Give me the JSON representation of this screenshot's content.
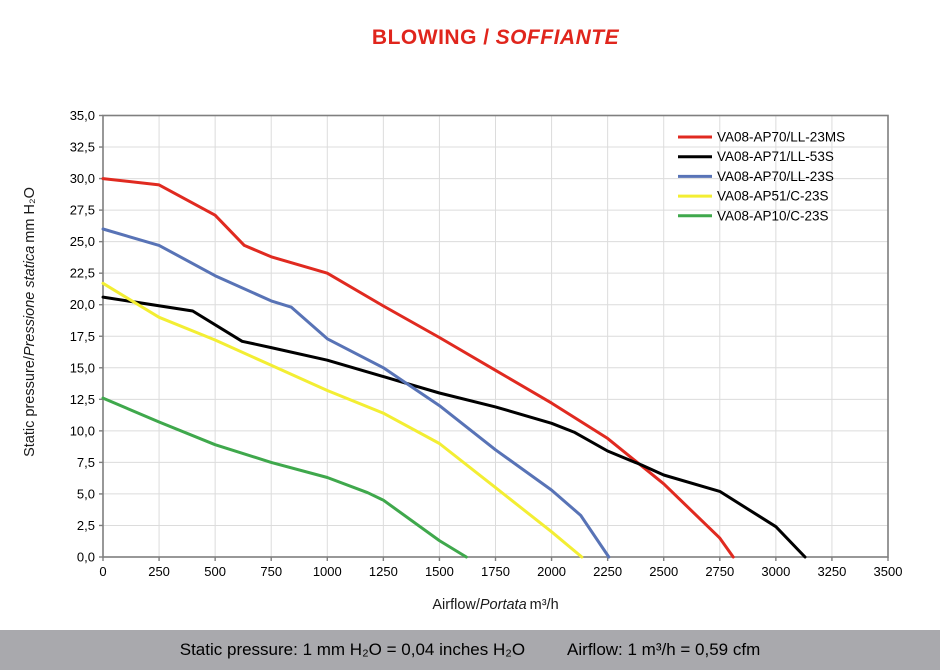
{
  "title": {
    "main": "BLOWING /",
    "italic": "SOFFIANTE",
    "color": "#e0251c"
  },
  "axes": {
    "y_title": {
      "normal": "Static pressure/",
      "italic": "Pressione statica",
      "unit": "mm  H₂O"
    },
    "x_title": {
      "normal": "Airflow/",
      "italic": "Portata",
      "unit": "m³/h"
    }
  },
  "footer": {
    "left": "Static pressure: 1 mm H₂O = 0,04 inches H₂O",
    "right": "Airflow: 1 m³/h = 0,59 cfm",
    "background": "#a9a9ad"
  },
  "colors": {
    "grid": "#dcdcdc",
    "axis_border": "#7f7f7f",
    "title_red": "#e0251c"
  },
  "chart_data": {
    "type": "line",
    "title": "BLOWING / SOFFIANTE",
    "xlabel": "Airflow/Portata m³/h",
    "ylabel": "Static pressure/Pressione statica mm H₂O",
    "xlim": [
      0,
      3500
    ],
    "ylim": [
      0,
      35
    ],
    "grid": true,
    "legend_position": "inside top-right",
    "x_ticks": [
      0,
      250,
      500,
      750,
      1000,
      1250,
      1500,
      1750,
      2000,
      2250,
      2500,
      2750,
      3000,
      3250,
      3500
    ],
    "x_tick_labels": [
      "0",
      "250",
      "500",
      "750",
      "1000",
      "1250",
      "1500",
      "1750",
      "2000",
      "2250",
      "2500",
      "2750",
      "3000",
      "3250",
      "3500"
    ],
    "y_ticks": [
      0,
      2.5,
      5,
      7.5,
      10,
      12.5,
      15,
      17.5,
      20,
      22.5,
      25,
      27.5,
      30,
      32.5,
      35
    ],
    "y_tick_labels": [
      "0,0",
      "2,5",
      "5,0",
      "7,5",
      "10,0",
      "12,5",
      "15,0",
      "17,5",
      "20,0",
      "22,5",
      "25,0",
      "27,5",
      "30,0",
      "32,5",
      "35,0"
    ],
    "series": [
      {
        "name": "VA08-AP70/LL-23MS",
        "color": "#e02a20",
        "points": [
          [
            0,
            30.0
          ],
          [
            250,
            29.5
          ],
          [
            500,
            27.1
          ],
          [
            630,
            24.7
          ],
          [
            750,
            23.8
          ],
          [
            1000,
            22.5
          ],
          [
            1250,
            19.9
          ],
          [
            1500,
            17.4
          ],
          [
            1750,
            14.8
          ],
          [
            2000,
            12.2
          ],
          [
            2250,
            9.4
          ],
          [
            2500,
            5.8
          ],
          [
            2750,
            1.5
          ],
          [
            2810,
            0
          ]
        ]
      },
      {
        "name": "VA08-AP71/LL-53S",
        "color": "#000000",
        "points": [
          [
            0,
            20.6
          ],
          [
            400,
            19.5
          ],
          [
            620,
            17.1
          ],
          [
            750,
            16.6
          ],
          [
            1000,
            15.6
          ],
          [
            1250,
            14.3
          ],
          [
            1500,
            13.0
          ],
          [
            1750,
            11.9
          ],
          [
            2000,
            10.6
          ],
          [
            2100,
            9.9
          ],
          [
            2250,
            8.4
          ],
          [
            2400,
            7.3
          ],
          [
            2500,
            6.5
          ],
          [
            2750,
            5.2
          ],
          [
            3000,
            2.4
          ],
          [
            3130,
            0
          ]
        ]
      },
      {
        "name": "VA08-AP70/LL-23S",
        "color": "#5873b6",
        "points": [
          [
            0,
            26.0
          ],
          [
            250,
            24.7
          ],
          [
            500,
            22.3
          ],
          [
            750,
            20.3
          ],
          [
            840,
            19.8
          ],
          [
            1000,
            17.3
          ],
          [
            1250,
            15.0
          ],
          [
            1500,
            12.0
          ],
          [
            1750,
            8.5
          ],
          [
            2000,
            5.3
          ],
          [
            2130,
            3.3
          ],
          [
            2255,
            0
          ]
        ]
      },
      {
        "name": "VA08-AP51/C-23S",
        "color": "#f3ee33",
        "points": [
          [
            0,
            21.7
          ],
          [
            250,
            19.0
          ],
          [
            500,
            17.2
          ],
          [
            750,
            15.2
          ],
          [
            1000,
            13.2
          ],
          [
            1250,
            11.4
          ],
          [
            1500,
            9.0
          ],
          [
            1750,
            5.5
          ],
          [
            2000,
            2.0
          ],
          [
            2135,
            0
          ]
        ]
      },
      {
        "name": "VA08-AP10/C-23S",
        "color": "#3fa84c",
        "points": [
          [
            0,
            12.6
          ],
          [
            250,
            10.7
          ],
          [
            500,
            8.9
          ],
          [
            750,
            7.5
          ],
          [
            1000,
            6.3
          ],
          [
            1180,
            5.1
          ],
          [
            1250,
            4.5
          ],
          [
            1500,
            1.3
          ],
          [
            1620,
            0
          ]
        ]
      }
    ]
  }
}
